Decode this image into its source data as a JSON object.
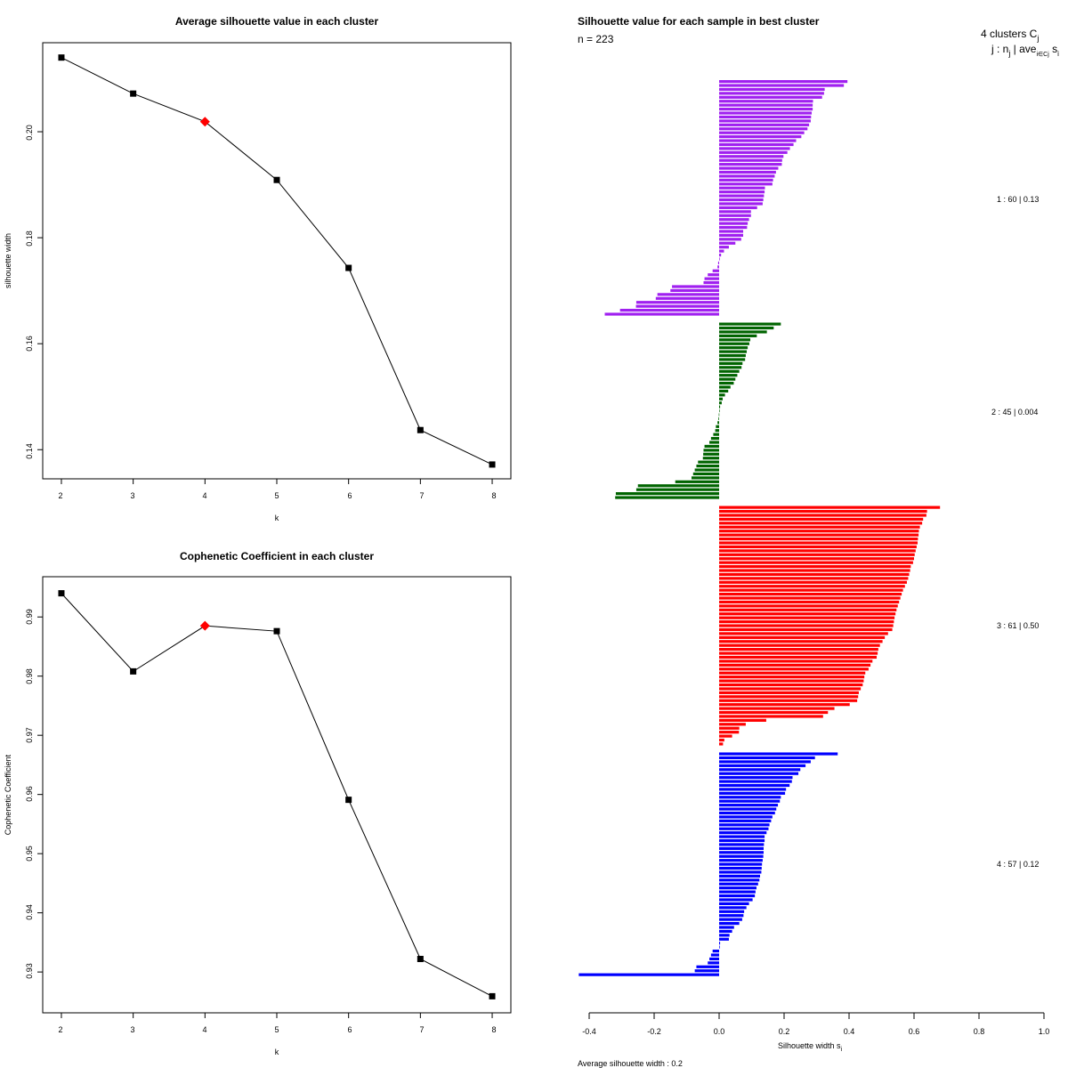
{
  "chart_data": [
    {
      "type": "line",
      "title": "Average silhouette value in each cluster",
      "xlabel": "k",
      "ylabel": "silhouette width",
      "x": [
        2,
        3,
        4,
        5,
        6,
        7,
        8
      ],
      "values": [
        0.214,
        0.2072,
        0.2019,
        0.1909,
        0.1743,
        0.1437,
        0.1372
      ],
      "highlight_k": 4,
      "xticks": [
        "2",
        "3",
        "4",
        "5",
        "6",
        "7",
        "8"
      ],
      "yticks": [
        "0.14",
        "0.16",
        "0.18",
        "0.20"
      ],
      "ylim": [
        0.1345,
        0.2168
      ],
      "xlim": [
        1.74,
        8.26
      ],
      "marker_color": "#000000",
      "highlight_color": "#ff0000"
    },
    {
      "type": "line",
      "title": "Cophenetic Coefficient in each cluster",
      "xlabel": "k",
      "ylabel": "Cophenetic Coefficient",
      "x": [
        2,
        3,
        4,
        5,
        6,
        7,
        8
      ],
      "values": [
        0.994,
        0.9808,
        0.9885,
        0.9876,
        0.9591,
        0.9322,
        0.9259
      ],
      "highlight_k": 4,
      "xticks": [
        "2",
        "3",
        "4",
        "5",
        "6",
        "7",
        "8"
      ],
      "yticks": [
        "0.93",
        "0.94",
        "0.95",
        "0.96",
        "0.97",
        "0.98",
        "0.99"
      ],
      "ylim": [
        0.9231,
        0.9968
      ],
      "xlim": [
        1.74,
        8.26
      ],
      "marker_color": "#000000",
      "highlight_color": "#ff0000"
    },
    {
      "type": "bar",
      "orientation": "horizontal",
      "title": "Silhouette value for each sample in best cluster",
      "n_label": "n = 223",
      "header_line1": "4  clusters  C",
      "header_line1_sub": "j",
      "header_line2": "j :  n",
      "header_line2_sub": "j",
      "header_line2_rest": " | ave",
      "header_line2_sub2": "i∈Cj",
      "header_line2_end": " s",
      "header_line2_sub3": "i",
      "xlabel": "Silhouette width s",
      "xlabel_sub": "i",
      "footer": "Average silhouette width :  0.2",
      "xticks": [
        "-0.4",
        "-0.2",
        "0.0",
        "0.2",
        "0.4",
        "0.6",
        "0.8",
        "1.0"
      ],
      "xlim": [
        -0.44,
        1.0
      ],
      "clusters": [
        {
          "label": "1 :  60  |  0.13",
          "color": "#a020f0",
          "values": [
            0.395,
            0.384,
            0.325,
            0.323,
            0.317,
            0.289,
            0.288,
            0.288,
            0.285,
            0.283,
            0.282,
            0.277,
            0.272,
            0.262,
            0.253,
            0.237,
            0.229,
            0.218,
            0.21,
            0.198,
            0.194,
            0.193,
            0.182,
            0.175,
            0.171,
            0.166,
            0.164,
            0.141,
            0.14,
            0.138,
            0.136,
            0.134,
            0.117,
            0.098,
            0.098,
            0.092,
            0.088,
            0.086,
            0.074,
            0.074,
            0.068,
            0.05,
            0.03,
            0.015,
            0.006,
            0.002,
            -0.003,
            -0.005,
            -0.02,
            -0.035,
            -0.045,
            -0.048,
            -0.145,
            -0.15,
            -0.19,
            -0.195,
            -0.255,
            -0.256,
            -0.305,
            -0.352
          ]
        },
        {
          "label": "2 :  45  |  0.004",
          "color": "#006400",
          "values": [
            0.19,
            0.168,
            0.147,
            0.116,
            0.096,
            0.093,
            0.088,
            0.085,
            0.082,
            0.08,
            0.072,
            0.069,
            0.062,
            0.056,
            0.05,
            0.045,
            0.035,
            0.028,
            0.018,
            0.011,
            0.008,
            0.003,
            0.001,
            -0.001,
            -0.002,
            -0.005,
            -0.01,
            -0.012,
            -0.018,
            -0.025,
            -0.03,
            -0.045,
            -0.048,
            -0.049,
            -0.05,
            -0.065,
            -0.07,
            -0.075,
            -0.08,
            -0.085,
            -0.135,
            -0.25,
            -0.255,
            -0.318,
            -0.32
          ]
        },
        {
          "label": "3 :  61  |  0.50",
          "color": "#ff0000",
          "values": [
            0.68,
            0.64,
            0.638,
            0.628,
            0.625,
            0.618,
            0.615,
            0.614,
            0.612,
            0.611,
            0.608,
            0.605,
            0.602,
            0.6,
            0.597,
            0.59,
            0.588,
            0.585,
            0.582,
            0.578,
            0.572,
            0.566,
            0.562,
            0.558,
            0.554,
            0.55,
            0.546,
            0.543,
            0.54,
            0.538,
            0.536,
            0.533,
            0.52,
            0.51,
            0.503,
            0.495,
            0.49,
            0.488,
            0.485,
            0.472,
            0.466,
            0.46,
            0.45,
            0.447,
            0.445,
            0.442,
            0.436,
            0.43,
            0.428,
            0.425,
            0.402,
            0.355,
            0.335,
            0.32,
            0.145,
            0.082,
            0.062,
            0.061,
            0.04,
            0.016,
            0.012
          ]
        },
        {
          "label": "4 :  57  |  0.12",
          "color": "#0000ff",
          "values": [
            0.365,
            0.295,
            0.282,
            0.266,
            0.25,
            0.244,
            0.226,
            0.224,
            0.217,
            0.206,
            0.203,
            0.19,
            0.187,
            0.181,
            0.176,
            0.172,
            0.164,
            0.16,
            0.155,
            0.152,
            0.146,
            0.14,
            0.14,
            0.138,
            0.137,
            0.137,
            0.136,
            0.134,
            0.132,
            0.131,
            0.13,
            0.126,
            0.124,
            0.12,
            0.115,
            0.112,
            0.11,
            0.103,
            0.092,
            0.084,
            0.077,
            0.075,
            0.071,
            0.062,
            0.046,
            0.04,
            0.032,
            0.03,
            0.003,
            0.002,
            -0.02,
            -0.025,
            -0.03,
            -0.035,
            -0.07,
            -0.075,
            -0.432
          ]
        }
      ],
      "average": 0.2
    }
  ]
}
